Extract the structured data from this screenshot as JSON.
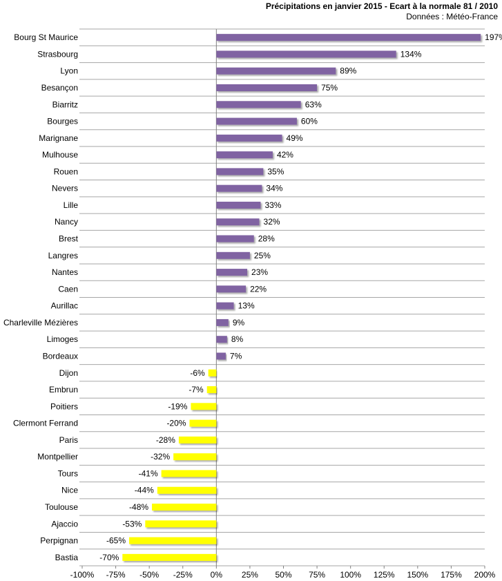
{
  "chart_data": {
    "type": "bar",
    "orientation": "horizontal",
    "title": "Précipitations en janvier 2015 - Ecart à la normale 81 / 2010",
    "subtitle": "Données : Météo-France",
    "xlabel": "",
    "ylabel": "",
    "xlim": [
      -100,
      200
    ],
    "ticks": [
      "-100%",
      "-75%",
      "-50%",
      "-25%",
      "0%",
      "25%",
      "50%",
      "75%",
      "100%",
      "125%",
      "150%",
      "175%",
      "200%"
    ],
    "tick_values": [
      -100,
      -75,
      -50,
      -25,
      0,
      25,
      50,
      75,
      100,
      125,
      150,
      175,
      200
    ],
    "grid": "horizontal",
    "positive_color": "#8064A2",
    "negative_color": "#FFFF00",
    "categories": [
      "Bourg St Maurice",
      "Strasbourg",
      "Lyon",
      "Besançon",
      "Biarritz",
      "Bourges",
      "Marignane",
      "Mulhouse",
      "Rouen",
      "Nevers",
      "Lille",
      "Nancy",
      "Brest",
      "Langres",
      "Nantes",
      "Caen",
      "Aurillac",
      "Charleville Mézières",
      "Limoges",
      "Bordeaux",
      "Dijon",
      "Embrun",
      "Poitiers",
      "Clermont Ferrand",
      "Paris",
      "Montpellier",
      "Tours",
      "Nice",
      "Toulouse",
      "Ajaccio",
      "Perpignan",
      "Bastia"
    ],
    "values": [
      197,
      134,
      89,
      75,
      63,
      60,
      49,
      42,
      35,
      34,
      33,
      32,
      28,
      25,
      23,
      22,
      13,
      9,
      8,
      7,
      -6,
      -7,
      -19,
      -20,
      -28,
      -32,
      -41,
      -44,
      -48,
      -53,
      -65,
      -70
    ],
    "value_labels": [
      "197%",
      "134%",
      "89%",
      "75%",
      "63%",
      "60%",
      "49%",
      "42%",
      "35%",
      "34%",
      "33%",
      "32%",
      "28%",
      "25%",
      "23%",
      "22%",
      "13%",
      "9%",
      "8%",
      "7%",
      "-6%",
      "-7%",
      "-19%",
      "-20%",
      "-28%",
      "-32%",
      "-41%",
      "-44%",
      "-48%",
      "-53%",
      "-65%",
      "-70%"
    ]
  }
}
